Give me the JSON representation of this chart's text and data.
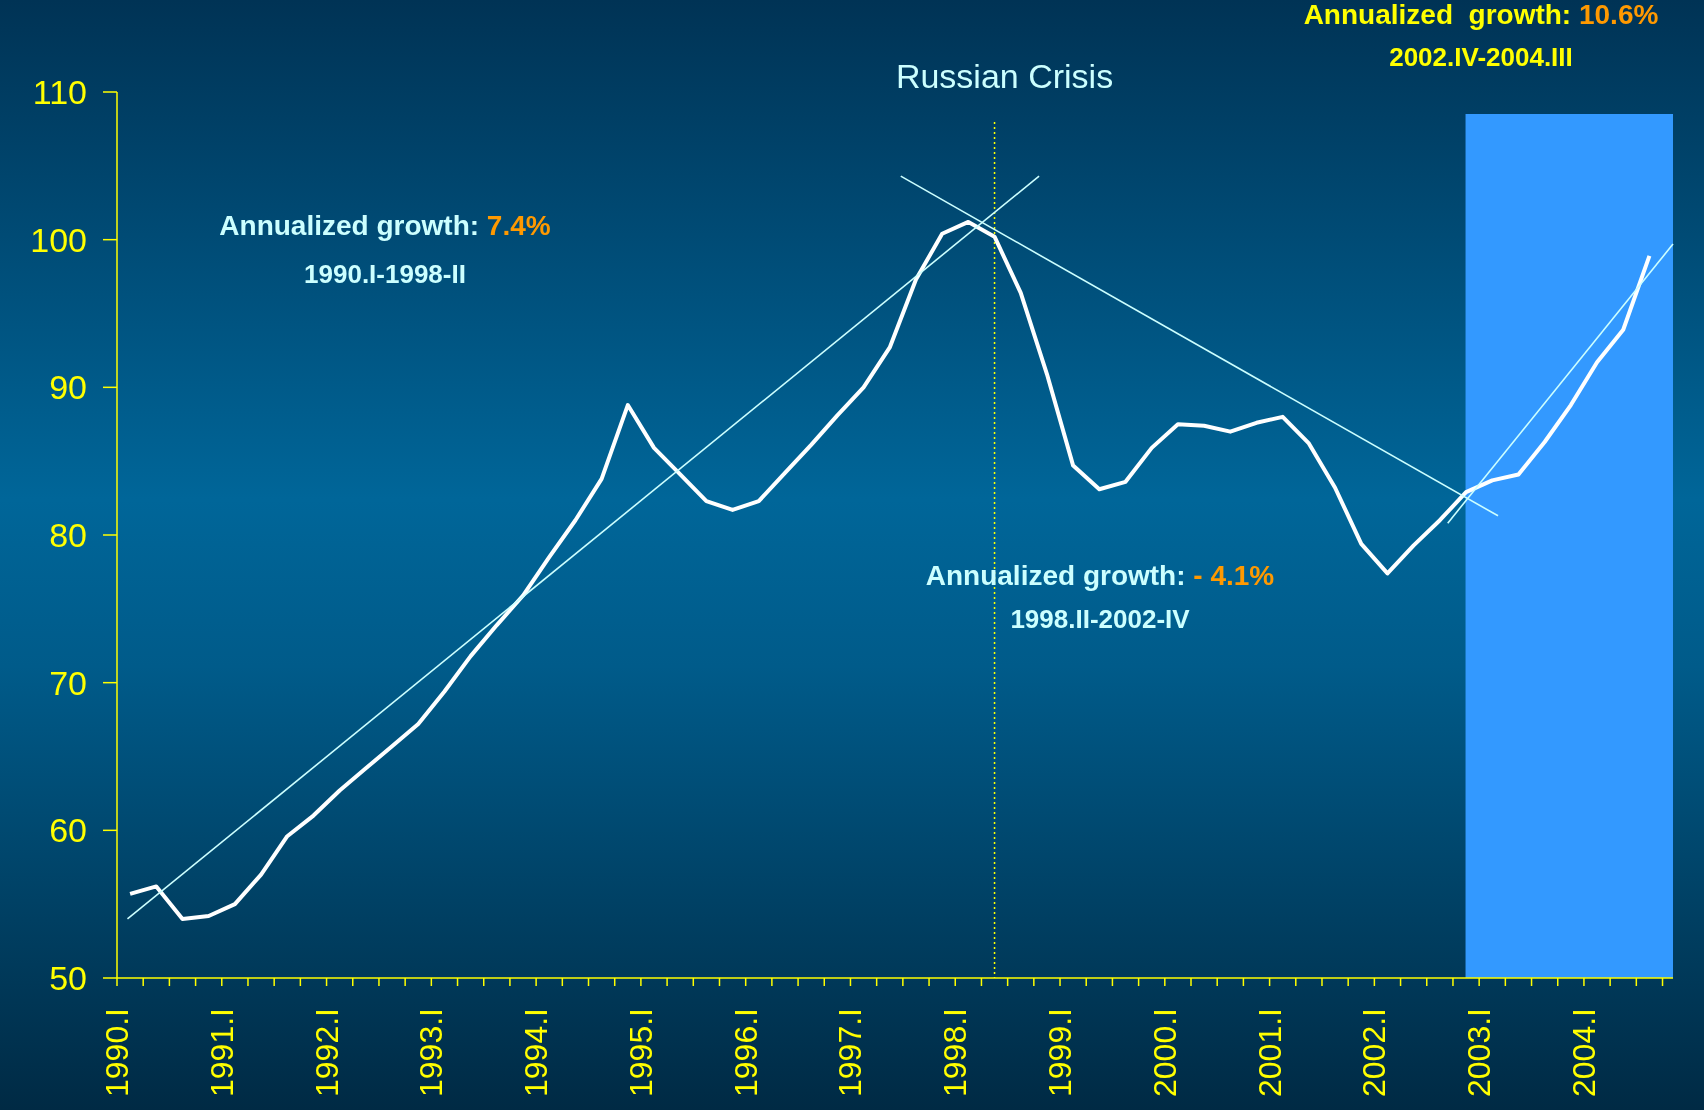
{
  "chart_data": {
    "type": "line",
    "xlim": [
      1990,
      2004.85
    ],
    "ylim": [
      50,
      110
    ],
    "yticks": [
      50,
      60,
      70,
      80,
      90,
      100,
      110
    ],
    "xticks": [
      {
        "value": 1990,
        "label": "1990.I"
      },
      {
        "value": 1990.25,
        "label": null
      },
      {
        "value": 1990.5,
        "label": null
      },
      {
        "value": 1990.75,
        "label": null
      },
      {
        "value": 1991,
        "label": "1991.I"
      },
      {
        "value": 1991.25,
        "label": null
      },
      {
        "value": 1991.5,
        "label": null
      },
      {
        "value": 1991.75,
        "label": null
      },
      {
        "value": 1992,
        "label": "1992.I"
      },
      {
        "value": 1992.25,
        "label": null
      },
      {
        "value": 1992.5,
        "label": null
      },
      {
        "value": 1992.75,
        "label": null
      },
      {
        "value": 1993,
        "label": "1993.I"
      },
      {
        "value": 1993.25,
        "label": null
      },
      {
        "value": 1993.5,
        "label": null
      },
      {
        "value": 1993.75,
        "label": null
      },
      {
        "value": 1994,
        "label": "1994.I"
      },
      {
        "value": 1994.25,
        "label": null
      },
      {
        "value": 1994.5,
        "label": null
      },
      {
        "value": 1994.75,
        "label": null
      },
      {
        "value": 1995,
        "label": "1995.I"
      },
      {
        "value": 1995.25,
        "label": null
      },
      {
        "value": 1995.5,
        "label": null
      },
      {
        "value": 1995.75,
        "label": null
      },
      {
        "value": 1996,
        "label": "1996.I"
      },
      {
        "value": 1996.25,
        "label": null
      },
      {
        "value": 1996.5,
        "label": null
      },
      {
        "value": 1996.75,
        "label": null
      },
      {
        "value": 1997,
        "label": "1997.I"
      },
      {
        "value": 1997.25,
        "label": null
      },
      {
        "value": 1997.5,
        "label": null
      },
      {
        "value": 1997.75,
        "label": null
      },
      {
        "value": 1998,
        "label": "1998.I"
      },
      {
        "value": 1998.25,
        "label": null
      },
      {
        "value": 1998.5,
        "label": null
      },
      {
        "value": 1998.75,
        "label": null
      },
      {
        "value": 1999,
        "label": "1999.I"
      },
      {
        "value": 1999.25,
        "label": null
      },
      {
        "value": 1999.5,
        "label": null
      },
      {
        "value": 1999.75,
        "label": null
      },
      {
        "value": 2000,
        "label": "2000.I"
      },
      {
        "value": 2000.25,
        "label": null
      },
      {
        "value": 2000.5,
        "label": null
      },
      {
        "value": 2000.75,
        "label": null
      },
      {
        "value": 2001,
        "label": "2001.I"
      },
      {
        "value": 2001.25,
        "label": null
      },
      {
        "value": 2001.5,
        "label": null
      },
      {
        "value": 2001.75,
        "label": null
      },
      {
        "value": 2002,
        "label": "2002.I"
      },
      {
        "value": 2002.25,
        "label": null
      },
      {
        "value": 2002.5,
        "label": null
      },
      {
        "value": 2002.75,
        "label": null
      },
      {
        "value": 2003,
        "label": "2003.I"
      },
      {
        "value": 2003.25,
        "label": null
      },
      {
        "value": 2003.5,
        "label": null
      },
      {
        "value": 2003.75,
        "label": null
      },
      {
        "value": 2004,
        "label": "2004.I"
      },
      {
        "value": 2004.25,
        "label": null
      },
      {
        "value": 2004.5,
        "label": null
      },
      {
        "value": 2004.75,
        "label": null
      }
    ],
    "series": [
      {
        "color": "#ffffff",
        "x": [
          1990.125,
          1990.375,
          1990.625,
          1990.875,
          1991.125,
          1991.375,
          1991.625,
          1991.875,
          1992.125,
          1992.375,
          1992.625,
          1992.875,
          1993.125,
          1993.375,
          1993.625,
          1993.875,
          1994.125,
          1994.375,
          1994.625,
          1994.875,
          1995.125,
          1995.375,
          1995.625,
          1995.875,
          1996.125,
          1996.375,
          1996.625,
          1996.875,
          1997.125,
          1997.375,
          1997.625,
          1997.875,
          1998.125,
          1998.375,
          1998.625,
          1998.875,
          1999.125,
          1999.375,
          1999.625,
          1999.875,
          2000.125,
          2000.375,
          2000.625,
          2000.875,
          2001.125,
          2001.375,
          2001.625,
          2001.875,
          2002.125,
          2002.375,
          2002.625,
          2002.875,
          2003.125,
          2003.375,
          2003.625,
          2003.875,
          2004.125,
          2004.375,
          2004.625
        ],
        "values": [
          55.7,
          56.2,
          54.0,
          54.2,
          55.0,
          57.0,
          59.6,
          61.0,
          62.7,
          64.2,
          65.7,
          67.2,
          69.4,
          71.8,
          73.9,
          75.9,
          78.5,
          81.0,
          83.8,
          88.8,
          85.9,
          84.1,
          82.3,
          81.7,
          82.3,
          84.2,
          86.1,
          88.1,
          90.0,
          92.7,
          97.3,
          100.4,
          101.2,
          100.2,
          96.4,
          90.9,
          84.7,
          83.1,
          83.6,
          85.9,
          87.5,
          87.4,
          87.0,
          87.6,
          88.0,
          86.2,
          83.2,
          79.4,
          77.4,
          79.3,
          81.0,
          82.9,
          83.7,
          84.1,
          86.3,
          88.8,
          91.7,
          93.9,
          98.9
        ]
      },
      {
        "type": "line",
        "color": "#ccffff",
        "x": [
          1990.1,
          1998.8
        ],
        "values": [
          54.0,
          104.3
        ]
      },
      {
        "type": "line",
        "color": "#ccffff",
        "x": [
          1997.48,
          2003.18
        ],
        "values": [
          104.3,
          81.3
        ]
      },
      {
        "type": "line",
        "color": "#ccffff",
        "x": [
          2002.7,
          2004.85
        ],
        "values": [
          80.8,
          99.7
        ]
      }
    ],
    "ref_lines": [
      {
        "axis": "x",
        "value": 1998.375,
        "label": "Russian Crisis",
        "color": "#ffff00",
        "line_style": "dotted"
      }
    ],
    "bands": [
      {
        "axis": "x",
        "from": 2002.87,
        "to": 2004.85,
        "color": "#3399ff"
      }
    ],
    "annotations": [
      "Annualized growth: 7.4%",
      "1990.I-1998-II",
      "Annualized growth: - 4.1%",
      "1998.II-2002-IV",
      "Annualized  growth: 10.6%",
      "2002.IV-2004.III"
    ],
    "grid": false,
    "marker": "none",
    "line_style": "solid"
  }
}
